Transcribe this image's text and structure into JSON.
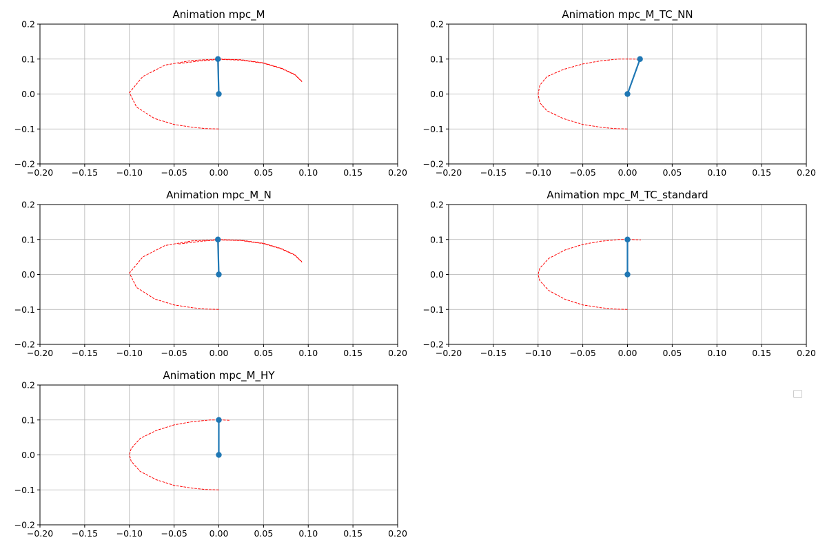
{
  "figure": {
    "colors": {
      "pendulum": "#1f77b4",
      "trajectory": "#ff0000",
      "grid": "#b0b0b0",
      "axes": "#000000"
    }
  },
  "chart_data": [
    {
      "type": "line",
      "title": "Animation mpc_M",
      "xlim": [
        -0.2,
        0.2
      ],
      "ylim": [
        -0.2,
        0.2
      ],
      "xticks": [
        -0.2,
        -0.15,
        -0.1,
        -0.05,
        0.0,
        0.05,
        0.1,
        0.15,
        0.2
      ],
      "yticks": [
        -0.2,
        -0.1,
        0.0,
        0.1,
        0.2
      ],
      "grid": true,
      "series": [
        {
          "style": "dashed",
          "color": "#ff0000",
          "x": [
            0.0,
            -0.015,
            -0.03,
            -0.05,
            -0.072,
            -0.092,
            -0.1,
            -0.085,
            -0.06,
            -0.03,
            0.0,
            0.025,
            0.05,
            0.07,
            0.085,
            0.093
          ],
          "y": [
            -0.1,
            -0.099,
            -0.095,
            -0.087,
            -0.07,
            -0.037,
            0.004,
            0.05,
            0.083,
            0.096,
            0.1,
            0.098,
            0.089,
            0.074,
            0.056,
            0.036
          ]
        },
        {
          "style": "dashed",
          "color": "#ff0000",
          "x": [
            -0.045,
            -0.02,
            0.0,
            0.025,
            0.05,
            0.07,
            0.085,
            0.093
          ],
          "y": [
            0.087,
            0.095,
            0.099,
            0.097,
            0.088,
            0.073,
            0.055,
            0.035
          ]
        },
        {
          "style": "solid-markers",
          "color": "#1f77b4",
          "x": [
            0.0,
            -0.001
          ],
          "y": [
            0.0,
            0.1
          ]
        }
      ]
    },
    {
      "type": "line",
      "title": "Animation mpc_M_TC_NN",
      "xlim": [
        -0.2,
        0.2
      ],
      "ylim": [
        -0.2,
        0.2
      ],
      "xticks": [
        -0.2,
        -0.15,
        -0.1,
        -0.05,
        0.0,
        0.05,
        0.1,
        0.15,
        0.2
      ],
      "yticks": [
        -0.2,
        -0.1,
        0.0,
        0.1,
        0.2
      ],
      "grid": true,
      "series": [
        {
          "style": "dashed",
          "color": "#ff0000",
          "x": [
            0.0,
            -0.015,
            -0.03,
            -0.05,
            -0.072,
            -0.09,
            -0.098,
            -0.1,
            -0.098,
            -0.09,
            -0.072,
            -0.05,
            -0.03,
            -0.01,
            0.005,
            0.015
          ],
          "y": [
            -0.1,
            -0.099,
            -0.095,
            -0.087,
            -0.07,
            -0.048,
            -0.025,
            0.0,
            0.025,
            0.05,
            0.07,
            0.086,
            0.095,
            0.1,
            0.1,
            0.099
          ]
        },
        {
          "style": "solid-markers",
          "color": "#1f77b4",
          "x": [
            0.0,
            0.014
          ],
          "y": [
            0.0,
            0.1
          ]
        }
      ]
    },
    {
      "type": "line",
      "title": "Animation mpc_M_N",
      "xlim": [
        -0.2,
        0.2
      ],
      "ylim": [
        -0.2,
        0.2
      ],
      "xticks": [
        -0.2,
        -0.15,
        -0.1,
        -0.05,
        0.0,
        0.05,
        0.1,
        0.15,
        0.2
      ],
      "yticks": [
        -0.2,
        -0.1,
        0.0,
        0.1,
        0.2
      ],
      "grid": true,
      "series": [
        {
          "style": "dashed",
          "color": "#ff0000",
          "x": [
            0.0,
            -0.015,
            -0.03,
            -0.05,
            -0.072,
            -0.092,
            -0.1,
            -0.085,
            -0.06,
            -0.03,
            0.0,
            0.025,
            0.05,
            0.07,
            0.085,
            0.093
          ],
          "y": [
            -0.1,
            -0.099,
            -0.095,
            -0.087,
            -0.07,
            -0.037,
            0.004,
            0.05,
            0.083,
            0.096,
            0.1,
            0.098,
            0.089,
            0.074,
            0.056,
            0.036
          ]
        },
        {
          "style": "dashed",
          "color": "#ff0000",
          "x": [
            -0.045,
            -0.02,
            0.0,
            0.025,
            0.05,
            0.07,
            0.085,
            0.093
          ],
          "y": [
            0.087,
            0.095,
            0.099,
            0.097,
            0.088,
            0.073,
            0.055,
            0.035
          ]
        },
        {
          "style": "solid-markers",
          "color": "#1f77b4",
          "x": [
            0.0,
            -0.001
          ],
          "y": [
            0.0,
            0.1
          ]
        }
      ]
    },
    {
      "type": "line",
      "title": "Animation mpc_M_TC_standard",
      "xlim": [
        -0.2,
        0.2
      ],
      "ylim": [
        -0.2,
        0.2
      ],
      "xticks": [
        -0.2,
        -0.15,
        -0.1,
        -0.05,
        0.0,
        0.05,
        0.1,
        0.15,
        0.2
      ],
      "yticks": [
        -0.2,
        -0.1,
        0.0,
        0.1,
        0.2
      ],
      "grid": true,
      "series": [
        {
          "style": "dashed",
          "color": "#ff0000",
          "x": [
            0.0,
            -0.015,
            -0.03,
            -0.05,
            -0.07,
            -0.088,
            -0.098,
            -0.1,
            -0.098,
            -0.088,
            -0.07,
            -0.05,
            -0.03,
            -0.01,
            0.005,
            0.015
          ],
          "y": [
            -0.1,
            -0.099,
            -0.095,
            -0.087,
            -0.071,
            -0.046,
            -0.018,
            0.0,
            0.018,
            0.046,
            0.07,
            0.086,
            0.095,
            0.1,
            0.1,
            0.099
          ]
        },
        {
          "style": "solid-markers",
          "color": "#1f77b4",
          "x": [
            0.0,
            0.0
          ],
          "y": [
            0.0,
            0.1
          ]
        }
      ]
    },
    {
      "type": "line",
      "title": "Animation mpc_M_HY",
      "xlim": [
        -0.2,
        0.2
      ],
      "ylim": [
        -0.2,
        0.2
      ],
      "xticks": [
        -0.2,
        -0.15,
        -0.1,
        -0.05,
        0.0,
        0.05,
        0.1,
        0.15,
        0.2
      ],
      "yticks": [
        -0.2,
        -0.1,
        0.0,
        0.1,
        0.2
      ],
      "grid": true,
      "series": [
        {
          "style": "dashed",
          "color": "#ff0000",
          "x": [
            0.0,
            -0.015,
            -0.03,
            -0.05,
            -0.07,
            -0.088,
            -0.098,
            -0.1,
            -0.098,
            -0.088,
            -0.07,
            -0.05,
            -0.03,
            -0.01,
            0.005,
            0.013
          ],
          "y": [
            -0.1,
            -0.099,
            -0.095,
            -0.087,
            -0.071,
            -0.047,
            -0.018,
            0.0,
            0.018,
            0.047,
            0.07,
            0.086,
            0.095,
            0.1,
            0.1,
            0.099
          ]
        },
        {
          "style": "solid-markers",
          "color": "#1f77b4",
          "x": [
            0.0,
            0.0
          ],
          "y": [
            0.0,
            0.1
          ]
        }
      ]
    }
  ]
}
